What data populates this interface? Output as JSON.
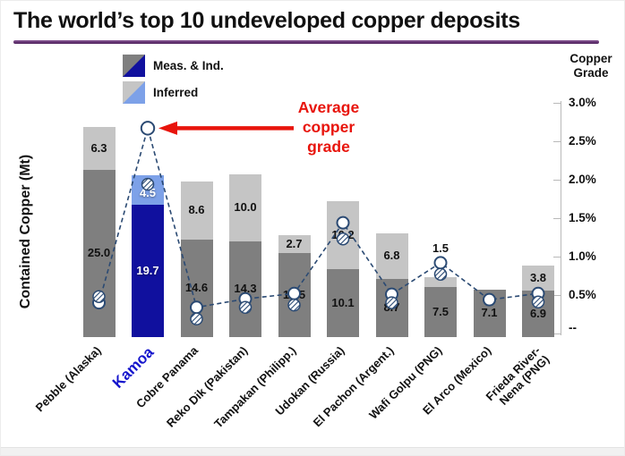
{
  "title": "The world’s top 10 undeveloped copper deposits",
  "legend": {
    "items": [
      {
        "label": "Meas. & Ind."
      },
      {
        "label": "Inferred"
      }
    ]
  },
  "left_axis": {
    "title": "Contained Copper (Mt)"
  },
  "right_axis": {
    "title_lines": [
      "Copper",
      "Grade"
    ],
    "ticks": [
      "3.0%",
      "2.5%",
      "2.0%",
      "1.5%",
      "1.0%",
      "0.5%",
      "--"
    ]
  },
  "annotation": {
    "lines": [
      "Average",
      "copper",
      "grade"
    ],
    "color": "#e8140c"
  },
  "colors": {
    "meas_gray": "#7f7f7f",
    "inferred_gray": "#c5c5c5",
    "kamoa_meas_blue": "#10109e",
    "kamoa_inferred_blue": "#7da1e8",
    "grade_line": "#2b4a73",
    "title_underline_dark": "#4a1c59",
    "title_underline_light": "#8a5a96",
    "text_black": "#111111",
    "kamoa_label_blue": "#1414cc"
  },
  "chart_data": {
    "type": "bar",
    "subtype": "stacked bars with overlaid grade line markers",
    "categories": [
      "Pebble (Alaska)",
      "Kamoa",
      "Cobre Panama",
      "Reko Dik (Pakistan)",
      "Tampakan (Philipp.)",
      "Udokan (Russia)",
      "El Pachon (Argent.)",
      "Wafi Golpu (PNG)",
      "El Arco (Mexico)",
      "Frieda River-\nNena (PNG)"
    ],
    "highlight_index": 1,
    "series": [
      {
        "name": "Meas. & Ind. (Mt)",
        "type": "bar",
        "values": [
          25.0,
          19.7,
          14.6,
          14.3,
          12.5,
          10.1,
          8.7,
          7.5,
          7.1,
          6.9
        ]
      },
      {
        "name": "Inferred (Mt)",
        "type": "bar",
        "values": [
          6.3,
          4.5,
          8.6,
          10.0,
          2.7,
          10.2,
          6.8,
          1.5,
          null,
          3.8
        ]
      },
      {
        "name": "Average copper grade (%)",
        "type": "line",
        "values": [
          0.4,
          2.67,
          0.34,
          0.45,
          0.52,
          1.44,
          0.51,
          0.92,
          0.44,
          0.52
        ]
      },
      {
        "name": "Copper grade, hatched markers (%)",
        "type": "scatter",
        "values": [
          0.48,
          1.94,
          0.19,
          0.34,
          0.37,
          1.23,
          0.4,
          0.77,
          null,
          0.41
        ]
      }
    ],
    "xlabel": "",
    "ylabel_left": "Contained Copper (Mt)",
    "ylabel_right": "Copper Grade",
    "ylim_right_percent": [
      0,
      3.0
    ],
    "grid": false,
    "legend_position": "top-left"
  }
}
